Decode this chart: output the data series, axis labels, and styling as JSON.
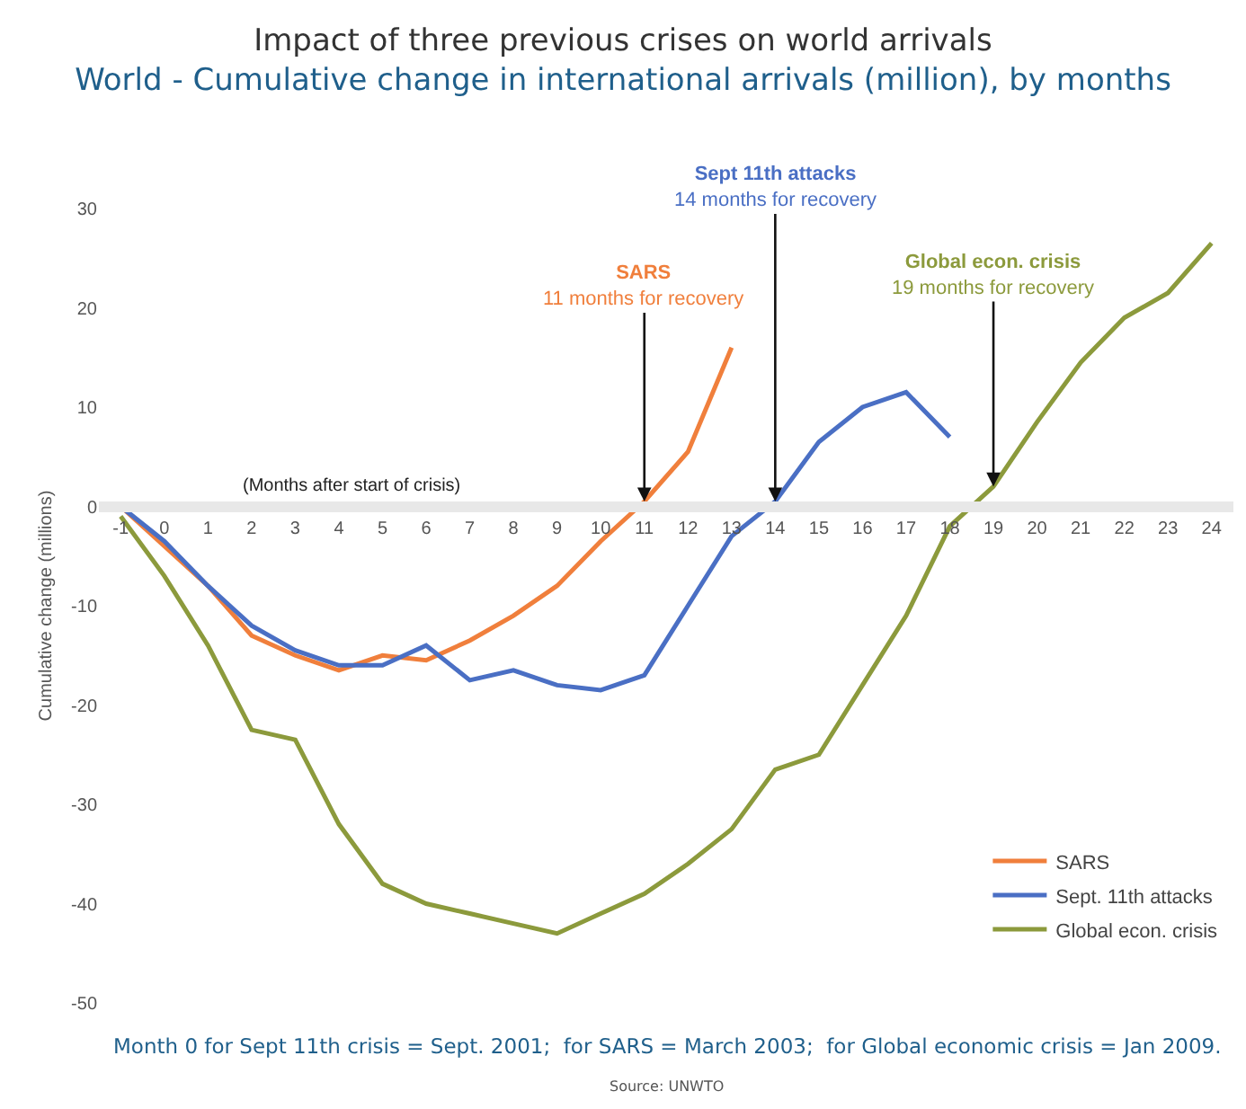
{
  "chart_data": {
    "type": "line",
    "title": "Impact of three previous crises on world arrivals",
    "subtitle": "World - Cumulative change in international arrivals (million), by months",
    "xlabel": "(Months after start of crisis)",
    "ylabel": "Cumulative change (millions)",
    "x": [
      -1,
      0,
      1,
      2,
      3,
      4,
      5,
      6,
      7,
      8,
      9,
      10,
      11,
      12,
      13,
      14,
      15,
      16,
      17,
      18,
      19,
      20,
      21,
      22,
      23,
      24
    ],
    "series": [
      {
        "name": "SARS",
        "color": "#f07f3c",
        "values": [
          0,
          -4,
          -8,
          -13,
          -15,
          -16.5,
          -15,
          -15.5,
          -13.5,
          -11,
          -8,
          -3.5,
          0.5,
          5.5,
          16,
          null,
          null,
          null,
          null,
          null,
          null,
          null,
          null,
          null,
          null,
          null
        ]
      },
      {
        "name": "Sept. 11th attacks",
        "color": "#4a6fc4",
        "values": [
          0,
          -3.5,
          -8,
          -12,
          -14.5,
          -16,
          -16,
          -14,
          -17.5,
          -16.5,
          -18,
          -18.5,
          -17,
          -10,
          -3,
          0.5,
          6.5,
          10,
          11.5,
          7,
          null,
          null,
          null,
          null,
          null,
          null
        ]
      },
      {
        "name": "Global econ. crisis",
        "color": "#8c9a3c",
        "values": [
          -1,
          -7,
          -14,
          -22.5,
          -23.5,
          -32,
          -38,
          -40,
          -41,
          -42,
          -43,
          -41,
          -39,
          -36,
          -32.5,
          -26.5,
          -25,
          -18,
          -11,
          -2,
          2,
          8.5,
          14.5,
          19,
          21.5,
          26.5
        ]
      }
    ],
    "xlim": [
      -1.5,
      24.5
    ],
    "ylim": [
      -50,
      30
    ],
    "xticks": [
      -1,
      0,
      1,
      2,
      3,
      4,
      5,
      6,
      7,
      8,
      9,
      10,
      11,
      12,
      13,
      14,
      15,
      16,
      17,
      18,
      19,
      20,
      21,
      22,
      23,
      24
    ],
    "yticks": [
      -50,
      -40,
      -30,
      -20,
      -10,
      0,
      10,
      20,
      30
    ],
    "annotations": [
      {
        "text": "SARS\n11 months for recovery",
        "x": 11,
        "y": 0.5
      },
      {
        "text": "Sept 11th attacks\n14 months for recovery",
        "x": 14,
        "y": 0.5
      },
      {
        "text": "Global econ. crisis\n19 months for recovery",
        "x": 19,
        "y": 2
      },
      "Month 0 for Sept 11th crisis = Sept. 2001;  for SARS = March 2003;  for Global economic crisis = Jan 2009.",
      "Source: UNWTO"
    ],
    "grid": false,
    "legend": "bottom right",
    "marker": "none",
    "line_style": "solid"
  }
}
